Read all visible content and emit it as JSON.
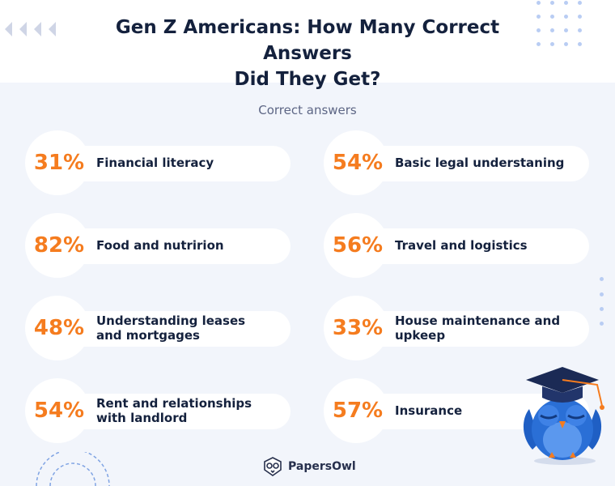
{
  "title_line1": "Gen Z Americans: How Many Correct Answers",
  "title_line2": "Did They Get?",
  "subtitle": "Correct answers",
  "stats": [
    {
      "pct": "31%",
      "label_line1": "Financial literacy",
      "label_line2": ""
    },
    {
      "pct": "54%",
      "label_line1": "Basic legal understaning",
      "label_line2": ""
    },
    {
      "pct": "82%",
      "label_line1": "Food and nutririon",
      "label_line2": ""
    },
    {
      "pct": "56%",
      "label_line1": "Travel and logistics",
      "label_line2": ""
    },
    {
      "pct": "48%",
      "label_line1": "Understanding leases",
      "label_line2": "and mortgages"
    },
    {
      "pct": "33%",
      "label_line1": "House maintenance and",
      "label_line2": "upkeep"
    },
    {
      "pct": "54%",
      "label_line1": "Rent and relationships",
      "label_line2": "with landlord"
    },
    {
      "pct": "57%",
      "label_line1": "Insurance",
      "label_line2": ""
    }
  ],
  "logo_text": "PapersOwl",
  "colors": {
    "accent": "#f57c1f",
    "text": "#14213d",
    "background": "#f2f5fb",
    "owl": "#2a6fd6"
  },
  "icons": [
    "chevron-left-icon",
    "owl-mascot-icon",
    "papersowl-logo-icon"
  ]
}
